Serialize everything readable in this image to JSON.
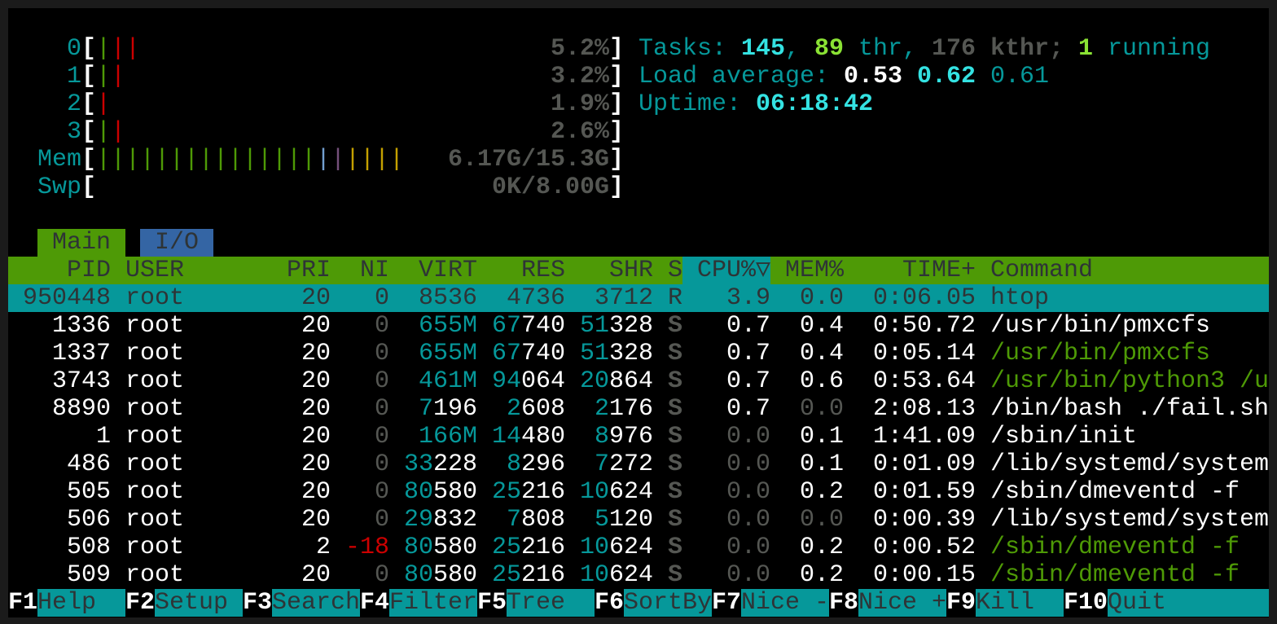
{
  "meters": {
    "cpus": [
      {
        "label": "0",
        "bars": [
          "#4e9a06",
          "#cc0000",
          "#cc0000"
        ],
        "value": "5.2%"
      },
      {
        "label": "1",
        "bars": [
          "#4e9a06",
          "#cc0000"
        ],
        "value": "3.2%"
      },
      {
        "label": "2",
        "bars": [
          "#cc0000"
        ],
        "value": "1.9%"
      },
      {
        "label": "3",
        "bars": [
          "#4e9a06",
          "#cc0000"
        ],
        "value": "2.6%"
      }
    ],
    "mem": {
      "label": "Mem",
      "bars": [
        "#4e9a06",
        "#4e9a06",
        "#4e9a06",
        "#4e9a06",
        "#4e9a06",
        "#4e9a06",
        "#4e9a06",
        "#4e9a06",
        "#4e9a06",
        "#4e9a06",
        "#4e9a06",
        "#4e9a06",
        "#4e9a06",
        "#4e9a06",
        "#4e9a06",
        "#729fcf",
        "#75507b",
        "#c4a000",
        "#c4a000",
        "#c4a000",
        "#c4a000"
      ],
      "value": "6.17G/15.3G"
    },
    "swap": {
      "label": "Swp",
      "bars": [],
      "value": "0K/8.00G"
    },
    "bracket_open": "[",
    "bracket_close": "]",
    "bar_char": "|"
  },
  "summary": {
    "tasks_label": "Tasks: ",
    "tasks": "145",
    "sep1": ", ",
    "threads": "89",
    "thr_label": " thr, ",
    "kthreads": "176",
    "kthr_label": " kthr; ",
    "running": "1",
    "running_label": " running",
    "load_label": "Load average: ",
    "load1": "0.53",
    "load5": "0.62",
    "load15": "0.61",
    "uptime_label": "Uptime: ",
    "uptime": "06:18:42"
  },
  "tabs": [
    {
      "label": " Main ",
      "active": true
    },
    {
      "label": " I/O ",
      "active": false
    }
  ],
  "columns": {
    "pid": "PID",
    "user": "USER",
    "pri": "PRI",
    "ni": "NI",
    "virt": "VIRT",
    "res": "RES",
    "shr": "SHR",
    "s": "S",
    "cpu": "CPU%▽",
    "mem": "MEM%",
    "time": "TIME+",
    "command": "Command"
  },
  "processes": [
    {
      "pid": "950448",
      "user": "root",
      "pri": "20",
      "ni": "0",
      "virt": "8536",
      "res": "4736",
      "shr": "3712",
      "s": "R",
      "cpu": "3.9",
      "mem": "0.0",
      "time": "0:06.05",
      "command": "htop",
      "selected": true
    },
    {
      "pid": "1336",
      "user": "root",
      "pri": "20",
      "ni": "0",
      "virt": "655M",
      "res": "67740",
      "shr": "51328",
      "s": "S",
      "cpu": "0.7",
      "mem": "0.4",
      "time": "0:50.72",
      "command": "/usr/bin/pmxcfs"
    },
    {
      "pid": "1337",
      "user": "root",
      "pri": "20",
      "ni": "0",
      "virt": "655M",
      "res": "67740",
      "shr": "51328",
      "s": "S",
      "cpu": "0.7",
      "mem": "0.4",
      "time": "0:05.14",
      "command": "/usr/bin/pmxcfs",
      "thread": true
    },
    {
      "pid": "3743",
      "user": "root",
      "pri": "20",
      "ni": "0",
      "virt": "461M",
      "res": "94064",
      "shr": "20864",
      "s": "S",
      "cpu": "0.7",
      "mem": "0.6",
      "time": "0:53.64",
      "command": "/usr/bin/python3 /u",
      "thread": true
    },
    {
      "pid": "8890",
      "user": "root",
      "pri": "20",
      "ni": "0",
      "virt": "7196",
      "res": "2608",
      "shr": "2176",
      "s": "S",
      "cpu": "0.7",
      "mem": "0.0",
      "time": "2:08.13",
      "command": "/bin/bash ./fail.sh"
    },
    {
      "pid": "1",
      "user": "root",
      "pri": "20",
      "ni": "0",
      "virt": "166M",
      "res": "14480",
      "shr": "8976",
      "s": "S",
      "cpu": "0.0",
      "mem": "0.1",
      "time": "1:41.09",
      "command": "/sbin/init"
    },
    {
      "pid": "486",
      "user": "root",
      "pri": "20",
      "ni": "0",
      "virt": "33228",
      "res": "8296",
      "shr": "7272",
      "s": "S",
      "cpu": "0.0",
      "mem": "0.1",
      "time": "0:01.09",
      "command": "/lib/systemd/system"
    },
    {
      "pid": "505",
      "user": "root",
      "pri": "20",
      "ni": "0",
      "virt": "80580",
      "res": "25216",
      "shr": "10624",
      "s": "S",
      "cpu": "0.0",
      "mem": "0.2",
      "time": "0:01.59",
      "command": "/sbin/dmeventd -f"
    },
    {
      "pid": "506",
      "user": "root",
      "pri": "20",
      "ni": "0",
      "virt": "29832",
      "res": "7808",
      "shr": "5120",
      "s": "S",
      "cpu": "0.0",
      "mem": "0.0",
      "time": "0:00.39",
      "command": "/lib/systemd/system"
    },
    {
      "pid": "508",
      "user": "root",
      "pri": "2",
      "ni": "-18",
      "virt": "80580",
      "res": "25216",
      "shr": "10624",
      "s": "S",
      "cpu": "0.0",
      "mem": "0.2",
      "time": "0:00.52",
      "command": "/sbin/dmeventd -f",
      "thread": true
    },
    {
      "pid": "509",
      "user": "root",
      "pri": "20",
      "ni": "0",
      "virt": "80580",
      "res": "25216",
      "shr": "10624",
      "s": "S",
      "cpu": "0.0",
      "mem": "0.2",
      "time": "0:00.15",
      "command": "/sbin/dmeventd -f",
      "thread": true
    }
  ],
  "function_keys": [
    {
      "key": "F1",
      "label": "Help  "
    },
    {
      "key": "F2",
      "label": "Setup "
    },
    {
      "key": "F3",
      "label": "Search"
    },
    {
      "key": "F4",
      "label": "Filter"
    },
    {
      "key": "F5",
      "label": "Tree  "
    },
    {
      "key": "F6",
      "label": "SortBy"
    },
    {
      "key": "F7",
      "label": "Nice -"
    },
    {
      "key": "F8",
      "label": "Nice +"
    },
    {
      "key": "F9",
      "label": "Kill  "
    },
    {
      "key": "F10",
      "label": "Quit"
    }
  ],
  "colors": {
    "green": "#4e9a06",
    "cyan": "#06989a",
    "bright_cyan": "#34e2e2",
    "tab_io": "#3465a4",
    "red": "#cc0000",
    "gray": "#555753"
  }
}
